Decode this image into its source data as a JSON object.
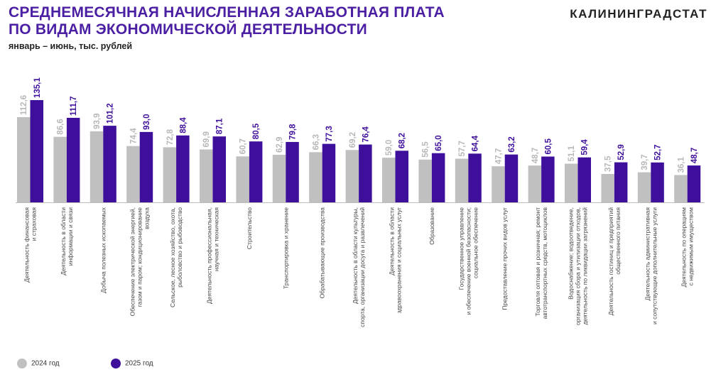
{
  "header": {
    "title_line1": "СРЕДНЕМЕСЯЧНАЯ НАЧИСЛЕННАЯ ЗАРАБОТНАЯ ПЛАТА",
    "title_line2": "ПО ВИДАМ ЭКОНОМИЧЕСКОЙ ДЕЯТЕЛЬНОСТИ",
    "subtitle": "январь – июнь, тыс. рублей",
    "brand": "КАЛИНИНГРАДСТАТ"
  },
  "colors": {
    "series_2024": "#c0c0c0",
    "series_2025": "#3e0f9b",
    "title": "#4b1fa3"
  },
  "chart_data": {
    "type": "bar",
    "categories": [
      [
        "Деятельность финансовая",
        "и страховая"
      ],
      [
        "Деятельность в области",
        "информации и связи"
      ],
      [
        "Добыча полезных ископаемых"
      ],
      [
        "Обеспечение электрической энергией,",
        "газом и паром; кондиционирование",
        "воздуха"
      ],
      [
        "Сельское, лесное хозяйство, охота,",
        "рыболовство и рыбоводство"
      ],
      [
        "Деятельность профессиональная,",
        "научная и техническая"
      ],
      [
        "Строительство"
      ],
      [
        "Транспортировка и хранение"
      ],
      [
        "Обрабатывающие производства"
      ],
      [
        "Деятельность в области культуры,",
        "спорта, организации досуга и развлечений"
      ],
      [
        "Деятельность в области",
        "здравоохранения и социальных услуг"
      ],
      [
        "Образование"
      ],
      [
        "Государственное управление",
        "и обеспечение военной безопасности;",
        "социальное обеспечение"
      ],
      [
        "Предоставление прочих видов услуг"
      ],
      [
        "Торговля оптовая и розничная; ремонт",
        "автотранспортных средств, мотоциклов"
      ],
      [
        "Водоснабжение; водоотведение,",
        "организация сбора и утилизации отходов,",
        "деятельность по ликвидации загрязнений"
      ],
      [
        "Деятельность гостиниц и предприятий",
        "общественного питания"
      ],
      [
        "Деятельность административная",
        "и сопутствующие дополнительные услуги"
      ],
      [
        "Деятельность по операциям",
        "с недвижимым имуществом"
      ]
    ],
    "series": [
      {
        "name": "2024 год",
        "values": [
          112.6,
          86.6,
          93.9,
          74.4,
          72.8,
          69.9,
          60.7,
          62.9,
          66.3,
          69.2,
          59.0,
          56.5,
          57.7,
          47.7,
          48.7,
          51.1,
          37.5,
          39.7,
          36.1
        ],
        "labels": [
          "112,6",
          "86,6",
          "93,9",
          "74,4",
          "72,8",
          "69,9",
          "60,7",
          "62,9",
          "66,3",
          "69,2",
          "59,0",
          "56,5",
          "57,7",
          "47,7",
          "48,7",
          "51,1",
          "37,5",
          "39,7",
          "36,1"
        ]
      },
      {
        "name": "2025 год",
        "values": [
          135.1,
          111.7,
          101.2,
          93.0,
          88.4,
          87.1,
          80.5,
          79.8,
          77.3,
          76.4,
          68.2,
          65.0,
          64.4,
          63.2,
          60.5,
          59.4,
          52.9,
          52.7,
          48.7
        ],
        "labels": [
          "135,1",
          "111,7",
          "101,2",
          "93,0",
          "88,4",
          "87,1",
          "80,5",
          "79,8",
          "77,3",
          "76,4",
          "68,2",
          "65,0",
          "64,4",
          "63,2",
          "60,5",
          "59,4",
          "52,9",
          "52,7",
          "48,7"
        ]
      }
    ],
    "ylim": [
      0,
      135.1
    ],
    "legend_position": "bottom-left",
    "grid": false
  }
}
